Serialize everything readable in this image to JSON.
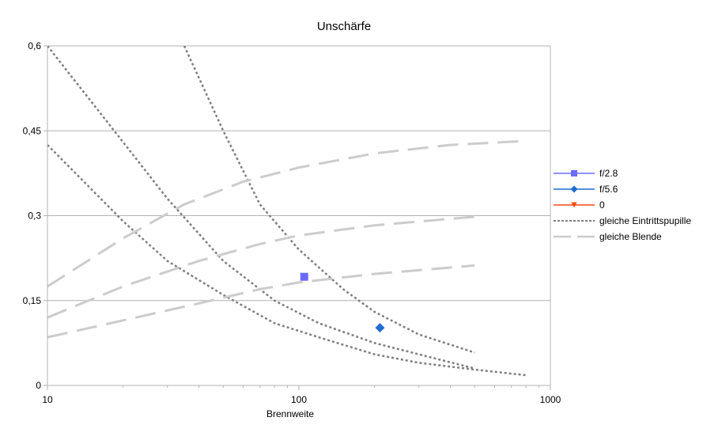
{
  "chart_data": {
    "type": "scatter",
    "title": "Unschärfe",
    "xlabel": "Brennweite",
    "ylabel": "",
    "x_scale": "log",
    "xlim": [
      10,
      1000
    ],
    "ylim": [
      0,
      0.6
    ],
    "x_ticks": [
      10,
      100,
      1000
    ],
    "x_tick_labels": [
      "10",
      "100",
      "1000"
    ],
    "y_ticks": [
      0,
      0.15,
      0.3,
      0.45,
      0.6
    ],
    "y_tick_labels": [
      "0",
      "0,15",
      "0,3",
      "0,45",
      "0,6"
    ],
    "grid": "horizontal",
    "legend_position": "right",
    "series": [
      {
        "name": "f/2.8",
        "kind": "marker",
        "marker": "square",
        "color": "#6b6bff",
        "points": [
          [
            105,
            0.192
          ]
        ]
      },
      {
        "name": "f/5.6",
        "kind": "marker",
        "marker": "diamond",
        "color": "#1f6fd1",
        "points": [
          [
            210,
            0.102
          ]
        ]
      },
      {
        "name": "0",
        "kind": "marker",
        "marker": "triangle-down",
        "color": "#ff4a14",
        "points": []
      },
      {
        "name": "gleiche Eintrittspupille",
        "kind": "line",
        "style": "dotted",
        "color": "#7f7f7f",
        "curves": [
          [
            [
              35,
              0.6
            ],
            [
              50,
              0.45
            ],
            [
              70,
              0.32
            ],
            [
              100,
              0.24
            ],
            [
              150,
              0.17
            ],
            [
              200,
              0.13
            ],
            [
              300,
              0.09
            ],
            [
              500,
              0.058
            ]
          ],
          [
            [
              10,
              0.6
            ],
            [
              20,
              0.43
            ],
            [
              30,
              0.33
            ],
            [
              50,
              0.22
            ],
            [
              80,
              0.15
            ],
            [
              120,
              0.11
            ],
            [
              200,
              0.075
            ],
            [
              300,
              0.055
            ],
            [
              500,
              0.03
            ]
          ],
          [
            [
              10,
              0.425
            ],
            [
              20,
              0.29
            ],
            [
              30,
              0.22
            ],
            [
              50,
              0.16
            ],
            [
              80,
              0.11
            ],
            [
              120,
              0.085
            ],
            [
              200,
              0.055
            ],
            [
              300,
              0.04
            ],
            [
              500,
              0.028
            ],
            [
              800,
              0.018
            ]
          ]
        ]
      },
      {
        "name": "gleiche Blende",
        "kind": "line",
        "style": "dashed",
        "color": "#cccccc",
        "curves": [
          [
            [
              10,
              0.175
            ],
            [
              20,
              0.26
            ],
            [
              35,
              0.32
            ],
            [
              60,
              0.36
            ],
            [
              100,
              0.385
            ],
            [
              200,
              0.41
            ],
            [
              400,
              0.425
            ],
            [
              800,
              0.432
            ]
          ],
          [
            [
              10,
              0.12
            ],
            [
              20,
              0.175
            ],
            [
              40,
              0.22
            ],
            [
              70,
              0.25
            ],
            [
              100,
              0.265
            ],
            [
              200,
              0.283
            ],
            [
              500,
              0.298
            ]
          ],
          [
            [
              10,
              0.085
            ],
            [
              20,
              0.115
            ],
            [
              40,
              0.145
            ],
            [
              70,
              0.17
            ],
            [
              100,
              0.182
            ],
            [
              200,
              0.197
            ],
            [
              500,
              0.212
            ]
          ]
        ]
      }
    ]
  }
}
